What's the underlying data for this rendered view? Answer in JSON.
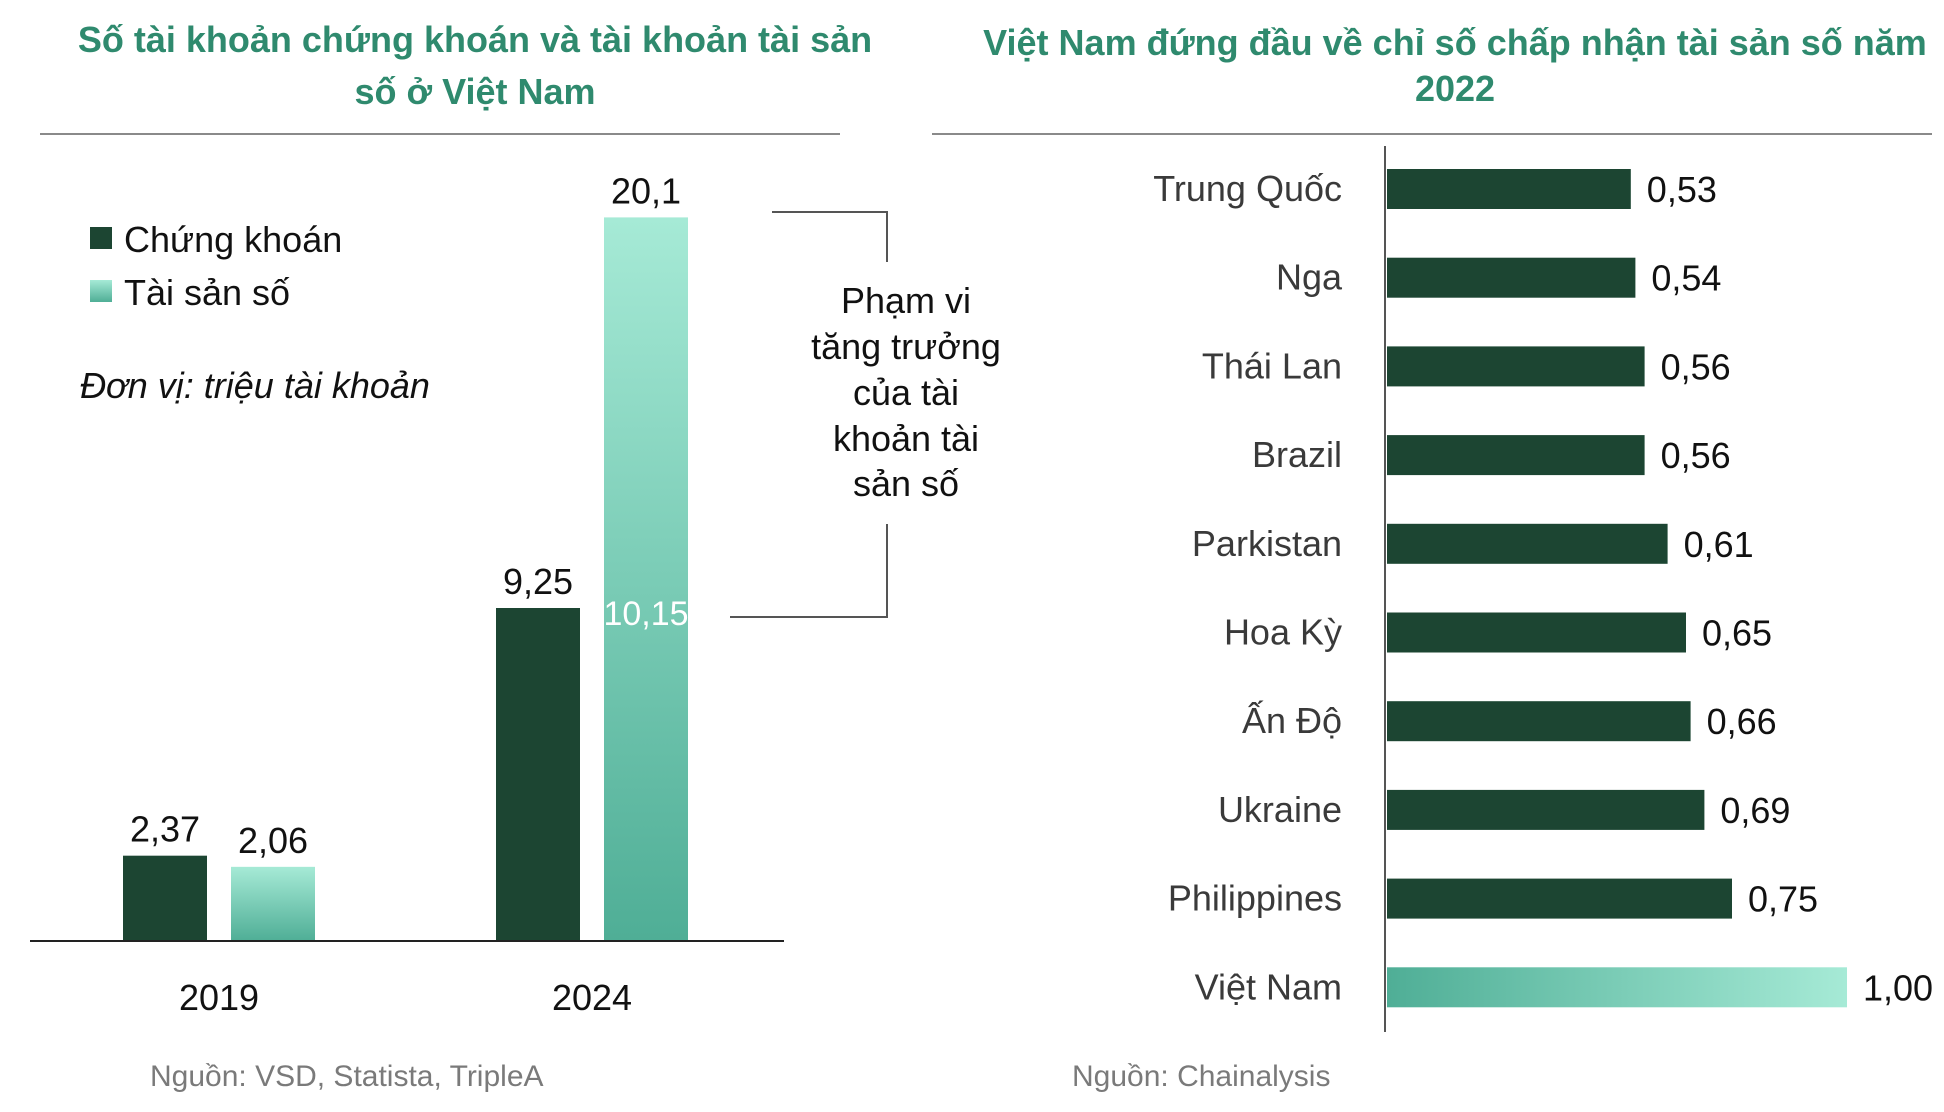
{
  "colors": {
    "dark": "#1c4532",
    "light_top": "#a6ead6",
    "light_bottom": "#4fae96",
    "title": "#2f8a6e",
    "rule": "#8a8a8a"
  },
  "left": {
    "title_lines": [
      "Số tài khoản chứng khoán và tài khoản tài sản",
      "số ở Việt Nam"
    ],
    "unit": "Đơn vị: triệu tài khoản",
    "source": "Nguồn: VSD, Statista, TripleA",
    "annotation_lines": [
      "Phạm vi",
      "tăng trưởng",
      "của tài",
      "khoản tài",
      "sản số"
    ]
  },
  "right": {
    "title_lines": [
      "Việt Nam đứng đầu về chỉ số chấp nhận tài sản số năm",
      "2022"
    ],
    "source": "Nguồn: Chainalysis"
  },
  "chart_data": [
    {
      "type": "bar",
      "categories": [
        "2019",
        "2024"
      ],
      "series": [
        {
          "name": "Chứng khoán",
          "values": [
            2.37,
            9.25
          ],
          "labels": [
            "2,37",
            "9,25"
          ]
        },
        {
          "name": "Tài sản số",
          "values": [
            2.06,
            20.1
          ],
          "labels": [
            "2,06",
            "20,1"
          ]
        }
      ],
      "annotations": [
        {
          "label": "10,15"
        }
      ],
      "title": "Số tài khoản chứng khoán và tài khoản tài sản số ở Việt Nam",
      "legend": "top-left",
      "grid": false
    },
    {
      "type": "bar",
      "orientation": "horizontal",
      "categories": [
        "Trung Quốc",
        "Nga",
        "Thái Lan",
        "Brazil",
        "Parkistan",
        "Hoa Kỳ",
        "Ấn Độ",
        "Ukraine",
        "Philippines",
        "Việt Nam"
      ],
      "values": [
        0.53,
        0.54,
        0.56,
        0.56,
        0.61,
        0.65,
        0.66,
        0.69,
        0.75,
        1.0
      ],
      "labels": [
        "0,53",
        "0,54",
        "0,56",
        "0,56",
        "0,61",
        "0,65",
        "0,66",
        "0,69",
        "0,75",
        "1,00"
      ],
      "highlight": "Việt Nam",
      "title": "Việt Nam đứng đầu về chỉ số chấp nhận tài sản số năm 2022",
      "grid": false
    }
  ]
}
